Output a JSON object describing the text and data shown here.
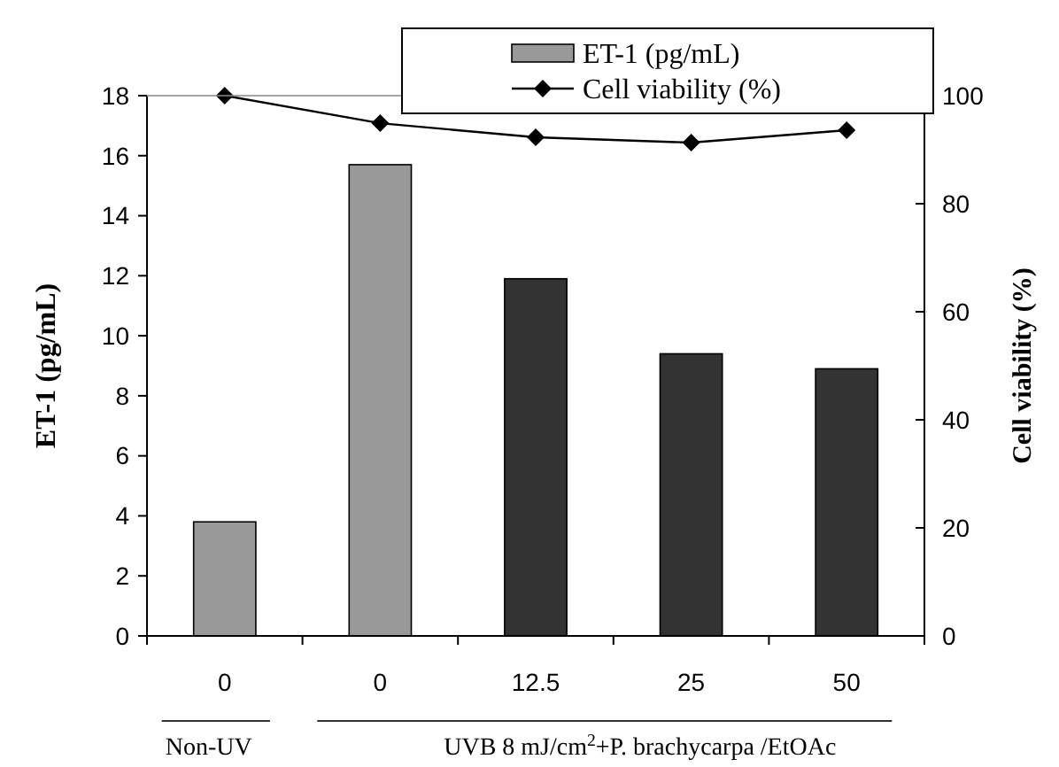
{
  "chart_data": {
    "type": "bar",
    "categories": [
      "0",
      "0",
      "12.5",
      "25",
      "50"
    ],
    "ylabel": "ET-1 (pg/mL)",
    "y2label": "Cell viability (%)",
    "ylim": [
      0,
      18
    ],
    "yticks": [
      0,
      2,
      4,
      6,
      8,
      10,
      12,
      14,
      16,
      18
    ],
    "y2lim": [
      0,
      100
    ],
    "y2ticks": [
      0,
      20,
      40,
      60,
      80,
      100
    ],
    "legend": "top right",
    "grid": false,
    "series": [
      {
        "name": "ET-1 (pg/mL)",
        "color": "#999999",
        "colors": [
          "#999999",
          "#999999",
          "#333333",
          "#333333",
          "#333333"
        ],
        "values": [
          3.8,
          15.7,
          11.9,
          9.4,
          8.9
        ]
      },
      {
        "name": "Cell viability (%)",
        "type": "line",
        "axis": "y2",
        "color": "#000000",
        "marker": "diamond",
        "values": [
          100,
          94.9,
          92.3,
          91.3,
          93.6
        ]
      }
    ],
    "annotations": [
      "Non-UV",
      "UVB 8 mJ/cm$^{2}$+P. brachycarpa /EtOAc"
    ]
  }
}
